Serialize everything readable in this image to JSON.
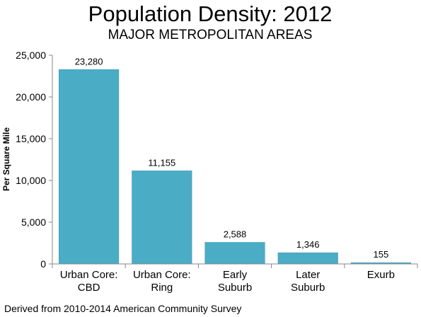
{
  "chart_data": {
    "type": "bar",
    "title": "Population Density: 2012",
    "subtitle": "MAJOR METROPOLITAN AREAS",
    "ylabel": "Per Square Mile",
    "xlabel": "",
    "categories": [
      [
        "Urban Core:",
        "CBD"
      ],
      [
        "Urban Core:",
        "Ring"
      ],
      [
        "Early",
        "Suburb"
      ],
      [
        "Later",
        "Suburb"
      ],
      [
        "Exurb"
      ]
    ],
    "values": [
      23280,
      11155,
      2588,
      1346,
      155
    ],
    "value_labels": [
      "23,280",
      "11,155",
      "2,588",
      "1,346",
      "155"
    ],
    "ylim": [
      0,
      25000
    ],
    "yticks": [
      0,
      5000,
      10000,
      15000,
      20000,
      25000
    ],
    "ytick_labels": [
      "0",
      "5,000",
      "10,000",
      "15,000",
      "20,000",
      "25,000"
    ],
    "bar_color": "#4BACC6",
    "grid": false,
    "legend": "none"
  },
  "footnote": "Derived from 2010-2014 American Community Survey"
}
